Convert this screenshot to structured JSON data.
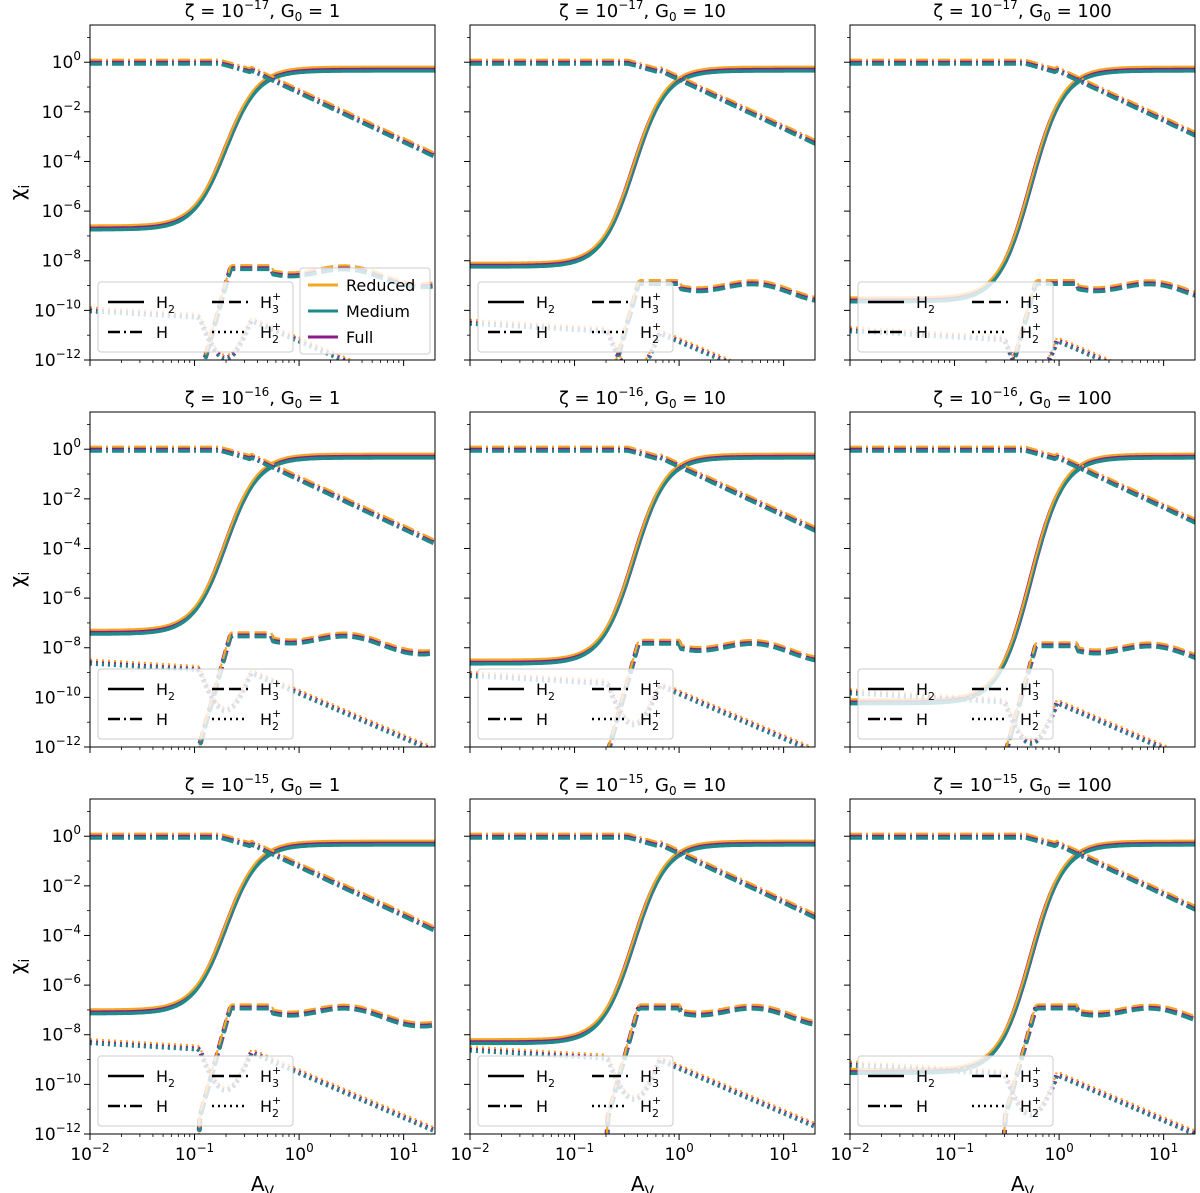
{
  "figure": {
    "ylabel": "χ",
    "ylabel_sub": "i",
    "xlabel": "A",
    "xlabel_sub": "V"
  },
  "legend_models": [
    {
      "label": "Reduced",
      "color": "#f5a623"
    },
    {
      "label": "Medium",
      "color": "#1f8a8a"
    },
    {
      "label": "Full",
      "color": "#8b1a8b"
    }
  ],
  "legend_species": [
    {
      "label": "H",
      "sub": "2",
      "sup": "",
      "style": "solid"
    },
    {
      "label": "H",
      "sub": "3",
      "sup": "+",
      "style": "dashed"
    },
    {
      "label": "H",
      "sub": "",
      "sup": "",
      "style": "dashdot"
    },
    {
      "label": "H",
      "sub": "2",
      "sup": "+",
      "style": "dotted"
    }
  ],
  "chart_data": [
    {
      "type": "line",
      "row": 0,
      "col": 0,
      "title_zeta": "ζ = 10",
      "zeta_exp": "−17",
      "title_g0": ", G",
      "g0_value": "= 1",
      "av_h2": 0.35,
      "h2_floor": -6.7,
      "h3_peak": -8.3,
      "h2p_floor": -10.0
    },
    {
      "type": "line",
      "row": 0,
      "col": 1,
      "title_zeta": "ζ = 10",
      "zeta_exp": "−17",
      "title_g0": ", G",
      "g0_value": "= 10",
      "av_h2": 0.65,
      "h2_floor": -8.2,
      "h3_peak": -8.9,
      "h2p_floor": -10.5
    },
    {
      "type": "line",
      "row": 0,
      "col": 2,
      "title_zeta": "ζ = 10",
      "zeta_exp": "−17",
      "title_g0": ", G",
      "g0_value": "= 100",
      "av_h2": 0.95,
      "h2_floor": -9.6,
      "h3_peak": -8.9,
      "h2p_floor": -10.8
    },
    {
      "type": "line",
      "row": 1,
      "col": 0,
      "title_zeta": "ζ = 10",
      "zeta_exp": "−16",
      "title_g0": ", G",
      "g0_value": "= 1",
      "av_h2": 0.35,
      "h2_floor": -7.4,
      "h3_peak": -7.5,
      "h2p_floor": -8.6
    },
    {
      "type": "line",
      "row": 1,
      "col": 1,
      "title_zeta": "ζ = 10",
      "zeta_exp": "−16",
      "title_g0": ", G",
      "g0_value": "= 10",
      "av_h2": 0.65,
      "h2_floor": -8.6,
      "h3_peak": -7.8,
      "h2p_floor": -9.1
    },
    {
      "type": "line",
      "row": 1,
      "col": 2,
      "title_zeta": "ζ = 10",
      "zeta_exp": "−16",
      "title_g0": ", G",
      "g0_value": "= 100",
      "av_h2": 0.95,
      "h2_floor": -10.2,
      "h3_peak": -7.9,
      "h2p_floor": -9.8
    },
    {
      "type": "line",
      "row": 2,
      "col": 0,
      "title_zeta": "ζ = 10",
      "zeta_exp": "−15",
      "title_g0": ", G",
      "g0_value": "= 1",
      "av_h2": 0.35,
      "h2_floor": -7.1,
      "h3_peak": -6.9,
      "h2p_floor": -8.3
    },
    {
      "type": "line",
      "row": 2,
      "col": 1,
      "title_zeta": "ζ = 10",
      "zeta_exp": "−15",
      "title_g0": ", G",
      "g0_value": "= 10",
      "av_h2": 0.65,
      "h2_floor": -8.3,
      "h3_peak": -6.9,
      "h2p_floor": -8.6
    },
    {
      "type": "line",
      "row": 2,
      "col": 2,
      "title_zeta": "ζ = 10",
      "zeta_exp": "−15",
      "title_g0": ", G",
      "g0_value": "= 100",
      "av_h2": 0.95,
      "h2_floor": -9.5,
      "h3_peak": -6.9,
      "h2p_floor": -9.2
    }
  ],
  "axes": {
    "xlim_log10": [
      -2,
      1.3
    ],
    "ylim_log10": [
      -12,
      1.5
    ],
    "x_ticks": [
      {
        "exp": "−2",
        "v": -2
      },
      {
        "exp": "−1",
        "v": -1
      },
      {
        "exp": "0",
        "v": 0
      },
      {
        "exp": "1",
        "v": 1
      }
    ],
    "y_ticks": [
      {
        "exp": "0",
        "v": 0
      },
      {
        "exp": "−2",
        "v": -2
      },
      {
        "exp": "−4",
        "v": -4
      },
      {
        "exp": "−6",
        "v": -6
      },
      {
        "exp": "−8",
        "v": -8
      },
      {
        "exp": "−10",
        "v": -10
      },
      {
        "exp": "−12",
        "v": -12
      }
    ],
    "tick_base": "10"
  }
}
